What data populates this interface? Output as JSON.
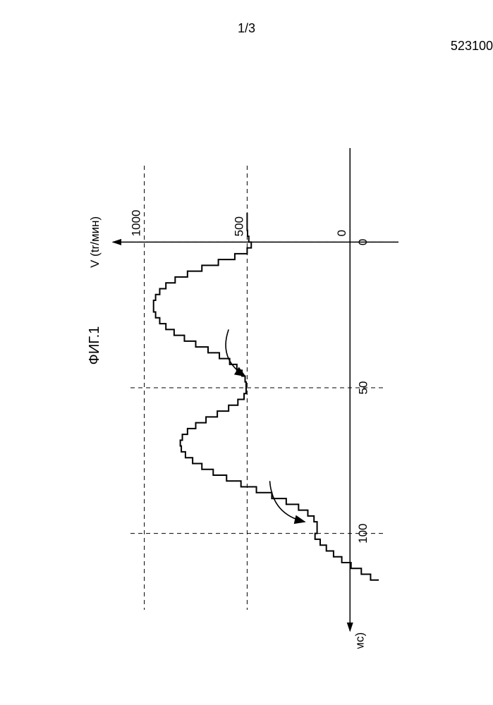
{
  "page": {
    "number": "1/3",
    "doc_id": "523100"
  },
  "figure": {
    "title": "ФИГ.1",
    "type": "line-step",
    "x_axis": {
      "label": "V (tr/мин)",
      "min": -150,
      "max": 1050,
      "ticks": [
        0,
        500,
        1000
      ]
    },
    "y_axis": {
      "label": "t(мс)",
      "min": -25,
      "max": 125,
      "ticks": [
        0,
        50,
        100
      ]
    },
    "colors": {
      "axis": "#000000",
      "grid": "#000000",
      "curve": "#000000",
      "background": "#ffffff",
      "text": "#000000"
    },
    "line_width": 2,
    "grid_dash": "6,5",
    "step_size_y": 2,
    "curve_points": [
      [
        500,
        -10
      ],
      [
        500,
        -8
      ],
      [
        500,
        -6
      ],
      [
        498,
        -4
      ],
      [
        492,
        -2
      ],
      [
        480,
        0
      ],
      [
        500,
        2
      ],
      [
        560,
        4
      ],
      [
        640,
        6
      ],
      [
        720,
        8
      ],
      [
        790,
        10
      ],
      [
        850,
        12
      ],
      [
        895,
        14
      ],
      [
        925,
        16
      ],
      [
        945,
        18
      ],
      [
        955,
        20
      ],
      [
        955,
        22
      ],
      [
        945,
        24
      ],
      [
        925,
        26
      ],
      [
        895,
        28
      ],
      [
        855,
        30
      ],
      [
        805,
        32
      ],
      [
        750,
        34
      ],
      [
        690,
        36
      ],
      [
        635,
        38
      ],
      [
        585,
        40
      ],
      [
        550,
        42
      ],
      [
        525,
        44
      ],
      [
        510,
        46
      ],
      [
        505,
        48
      ],
      [
        505,
        50
      ],
      [
        515,
        52
      ],
      [
        545,
        54
      ],
      [
        590,
        56
      ],
      [
        645,
        58
      ],
      [
        700,
        60
      ],
      [
        750,
        62
      ],
      [
        790,
        64
      ],
      [
        815,
        66
      ],
      [
        825,
        68
      ],
      [
        820,
        70
      ],
      [
        800,
        72
      ],
      [
        765,
        74
      ],
      [
        720,
        76
      ],
      [
        665,
        78
      ],
      [
        600,
        80
      ],
      [
        530,
        82
      ],
      [
        455,
        84
      ],
      [
        380,
        86
      ],
      [
        310,
        88
      ],
      [
        250,
        90
      ],
      [
        205,
        92
      ],
      [
        175,
        94
      ],
      [
        160,
        96
      ],
      [
        160,
        98
      ],
      [
        170,
        100
      ],
      [
        145,
        102
      ],
      [
        115,
        104
      ],
      [
        80,
        106
      ],
      [
        40,
        108
      ],
      [
        -5,
        110
      ],
      [
        -55,
        112
      ],
      [
        -100,
        114
      ],
      [
        -140,
        116
      ]
    ],
    "arrows": [
      {
        "from": [
          590,
          30
        ],
        "to": [
          510,
          46
        ],
        "curve": 1
      },
      {
        "from": [
          390,
          82
        ],
        "to": [
          220,
          96
        ],
        "curve": 1
      }
    ]
  }
}
